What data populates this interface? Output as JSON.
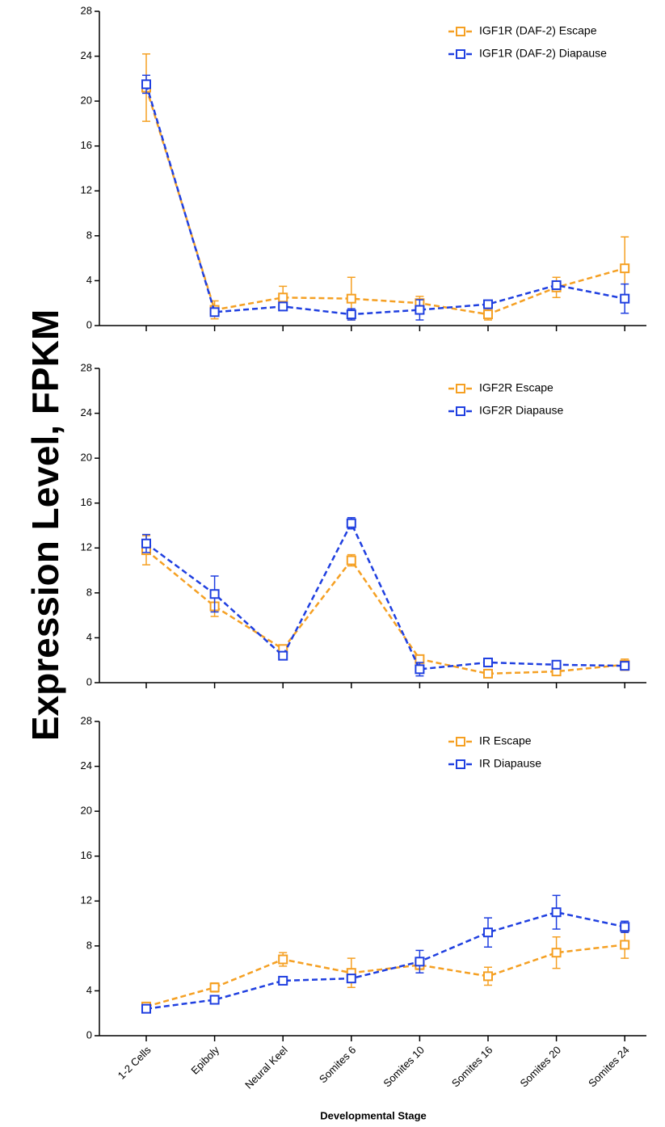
{
  "ylabel": "Expression Level, FPKM",
  "xlabel": "Developmental Stage",
  "chart_data": [
    {
      "type": "line",
      "categories": [
        null,
        null,
        null,
        null,
        null,
        null,
        null,
        null
      ],
      "ylim": [
        0,
        28
      ],
      "yticks": [
        0,
        4,
        8,
        12,
        16,
        20,
        24,
        28
      ],
      "legend": "upper right",
      "series": [
        {
          "name": "IGF1R (DAF-2) Escape",
          "color": "#f5a023",
          "values": [
            21.2,
            1.4,
            2.5,
            2.4,
            2.0,
            1.0,
            3.4,
            5.1
          ],
          "errors": [
            3.0,
            0.8,
            1.0,
            1.9,
            0.6,
            0.5,
            0.9,
            2.8
          ]
        },
        {
          "name": "IGF1R (DAF-2) Diapause",
          "color": "#1f3fe0",
          "values": [
            21.5,
            1.2,
            1.7,
            1.0,
            1.4,
            1.9,
            3.6,
            2.4
          ],
          "errors": [
            0.8,
            0.3,
            0.3,
            0.5,
            0.9,
            0.2,
            0.3,
            1.3
          ]
        }
      ]
    },
    {
      "type": "line",
      "categories": [
        null,
        null,
        null,
        null,
        null,
        null,
        null,
        null
      ],
      "ylim": [
        0,
        28
      ],
      "yticks": [
        0,
        4,
        8,
        12,
        16,
        20,
        24,
        28
      ],
      "legend": "upper right",
      "series": [
        {
          "name": "IGF2R Escape",
          "color": "#f5a023",
          "values": [
            11.8,
            6.8,
            3.0,
            10.9,
            2.1,
            0.8,
            1.0,
            1.6
          ],
          "errors": [
            1.3,
            0.9,
            0.3,
            0.5,
            0.3,
            0.2,
            0.2,
            0.5
          ]
        },
        {
          "name": "IGF2R Diapause",
          "color": "#1f3fe0",
          "values": [
            12.4,
            7.9,
            2.4,
            14.2,
            1.2,
            1.8,
            1.6,
            1.5
          ],
          "errors": [
            0.8,
            1.6,
            0.3,
            0.5,
            0.6,
            0.2,
            0.2,
            0.3
          ]
        }
      ]
    },
    {
      "type": "line",
      "categories": [
        "1-2 Cells",
        "Epiboly",
        "Neural Keel",
        "Somites 6",
        "Somites 10",
        "Somites 16",
        "Somites 20",
        "Somites 24"
      ],
      "ylim": [
        0,
        28
      ],
      "yticks": [
        0,
        4,
        8,
        12,
        16,
        20,
        24,
        28
      ],
      "legend": "upper right",
      "series": [
        {
          "name": "IR Escape",
          "color": "#f5a023",
          "values": [
            2.6,
            4.3,
            6.8,
            5.6,
            6.3,
            5.3,
            7.4,
            8.1
          ],
          "errors": [
            0.2,
            0.4,
            0.6,
            1.3,
            0.4,
            0.8,
            1.4,
            1.2
          ]
        },
        {
          "name": "IR Diapause",
          "color": "#1f3fe0",
          "values": [
            2.4,
            3.2,
            4.9,
            5.1,
            6.6,
            9.2,
            11.0,
            9.7
          ],
          "errors": [
            0.2,
            0.3,
            0.2,
            0.3,
            1.0,
            1.3,
            1.5,
            0.5
          ]
        }
      ]
    }
  ]
}
